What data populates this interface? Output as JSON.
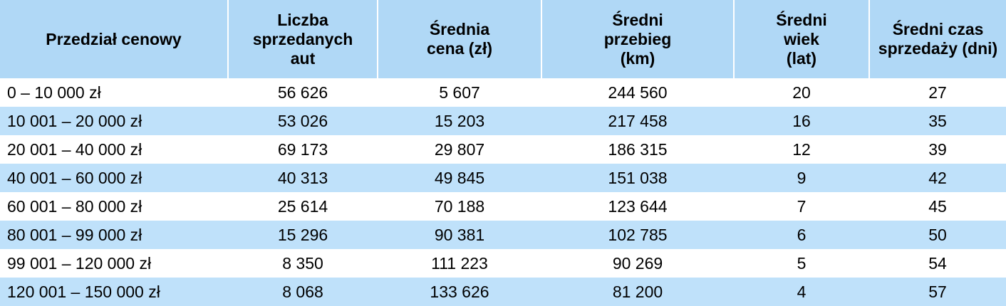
{
  "table": {
    "header": [
      "Przedział cenowy",
      "Liczba sprzedanych aut",
      "Średnia cena (zł)",
      "Średni przebieg (km)",
      "Średni wiek (lat)",
      "Średni czas sprzedaży (dni)"
    ],
    "rows": [
      [
        "0 – 10 000 zł",
        "56 626",
        "5 607",
        "244 560",
        "20",
        "27"
      ],
      [
        "10 001 – 20 000 zł",
        "53 026",
        "15 203",
        "217 458",
        "16",
        "35"
      ],
      [
        "20 001 – 40 000 zł",
        "69 173",
        "29 807",
        "186 315",
        "12",
        "39"
      ],
      [
        "40 001 – 60 000 zł",
        "40 313",
        "49 845",
        "151 038",
        "9",
        "42"
      ],
      [
        "60 001 – 80 000 zł",
        "25 614",
        "70 188",
        "123 644",
        "7",
        "45"
      ],
      [
        "80 001 – 99 000 zł",
        "15 296",
        "90 381",
        "102 785",
        "6",
        "50"
      ],
      [
        "99 001 – 120 000 zł",
        "8 350",
        "111 223",
        "90 269",
        "5",
        "54"
      ],
      [
        "120 001 – 150 000 zł",
        "8 068",
        "133 626",
        "81 200",
        "4",
        "57"
      ]
    ]
  }
}
